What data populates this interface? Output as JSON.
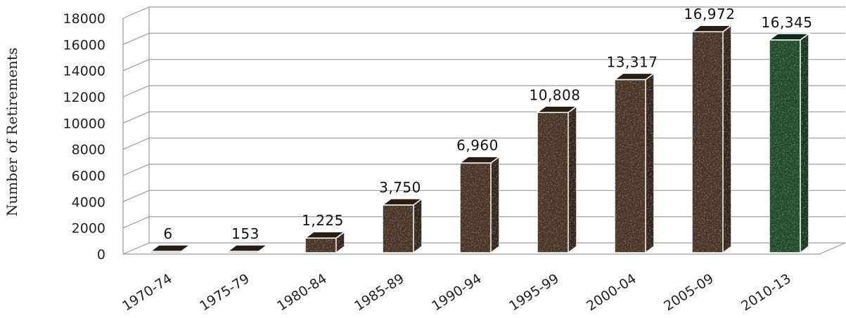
{
  "chart_data": {
    "type": "bar",
    "ylabel": "Number of Retirements",
    "ylim": [
      0,
      18000
    ],
    "yticks": [
      "0",
      "2000",
      "4000",
      "6000",
      "8000",
      "10000",
      "12000",
      "14000",
      "16000",
      "18000"
    ],
    "grid": true,
    "categories": [
      "1970-74",
      "1975-79",
      "1980-84",
      "1985-89",
      "1990-94",
      "1995-99",
      "2000-04",
      "2005-09",
      "2010-13"
    ],
    "values": [
      6,
      153,
      1225,
      3750,
      6960,
      10808,
      13317,
      16972,
      16345
    ],
    "value_labels": [
      "6",
      "153",
      "1,225",
      "3,750",
      "6,960",
      "10,808",
      "13,317",
      "16,972",
      "16,345"
    ],
    "colors": {
      "bar": "#4a3422",
      "bar_highlight": "#1f4d2c",
      "gridline": "#9a9a9a"
    }
  }
}
